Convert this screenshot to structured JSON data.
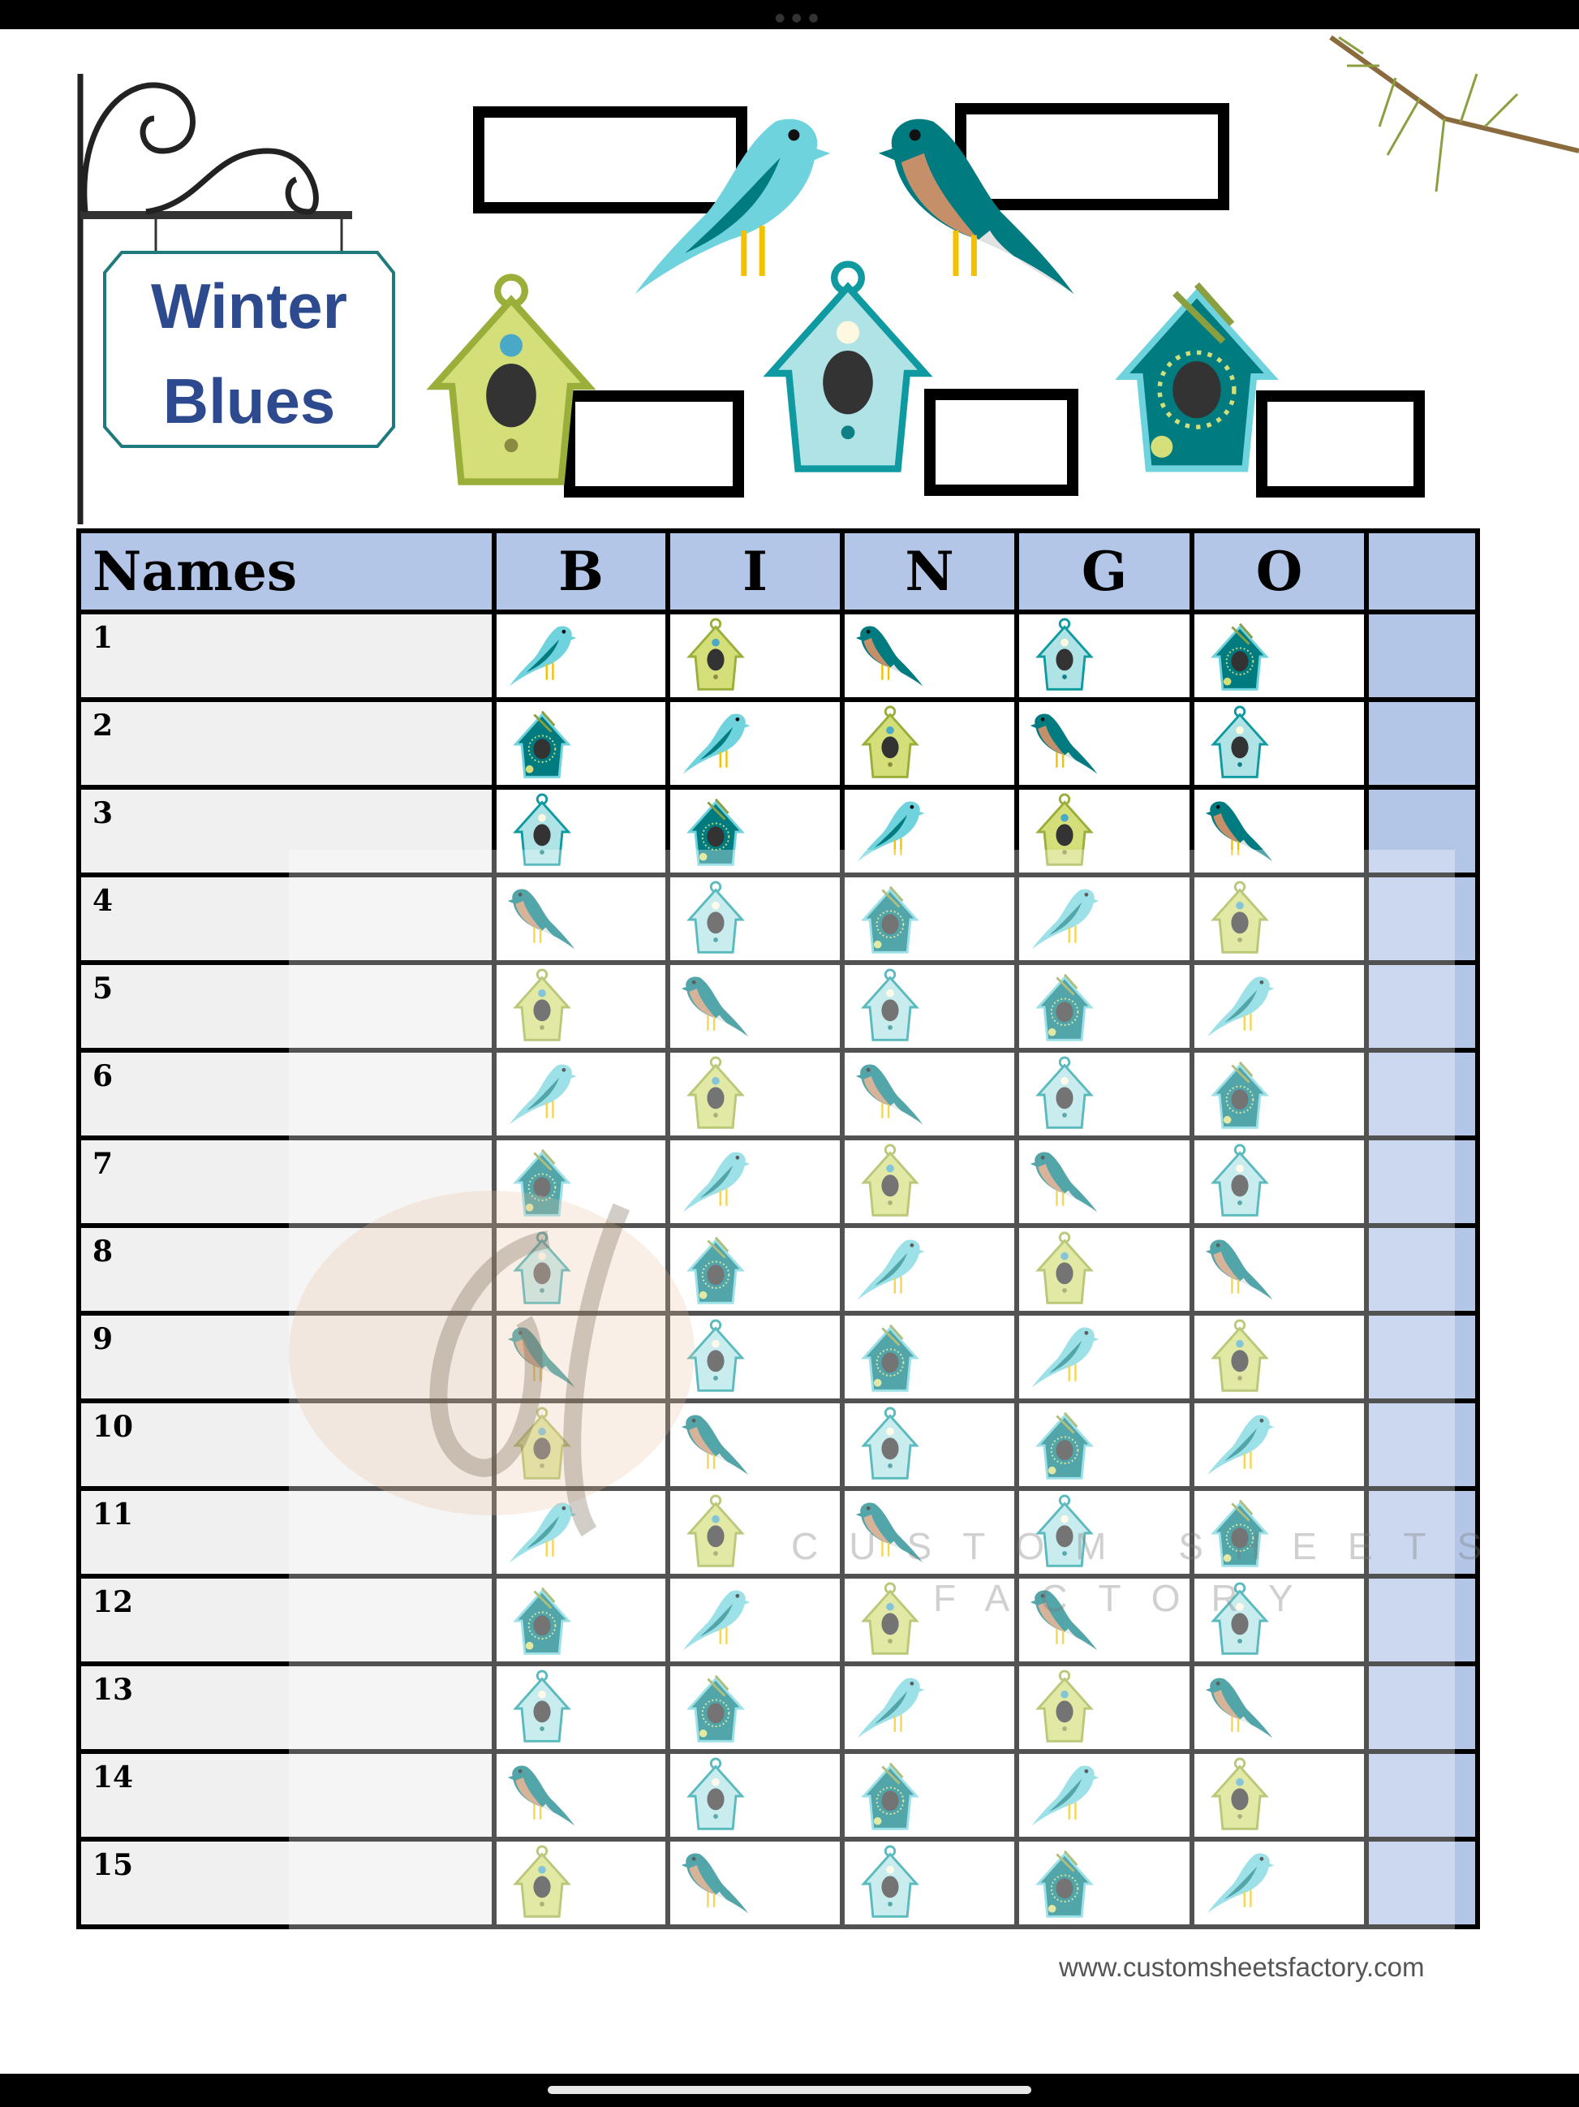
{
  "title": {
    "line1": "Winter",
    "line2": "Blues"
  },
  "table": {
    "header": [
      "Names",
      "B",
      "I",
      "N",
      "G",
      "O",
      ""
    ],
    "rows": [
      {
        "number": "1",
        "icons": [
          "bluebird",
          "green-birdhouse",
          "robin",
          "light-blue-birdhouse",
          "teal-birdhouse"
        ]
      },
      {
        "number": "2",
        "icons": [
          "teal-birdhouse",
          "bluebird",
          "green-birdhouse",
          "robin",
          "light-blue-birdhouse"
        ]
      },
      {
        "number": "3",
        "icons": [
          "light-blue-birdhouse",
          "teal-birdhouse",
          "bluebird",
          "green-birdhouse",
          "robin"
        ]
      },
      {
        "number": "4",
        "icons": [
          "robin",
          "light-blue-birdhouse",
          "teal-birdhouse",
          "bluebird",
          "green-birdhouse"
        ]
      },
      {
        "number": "5",
        "icons": [
          "green-birdhouse",
          "robin",
          "light-blue-birdhouse",
          "teal-birdhouse",
          "bluebird"
        ]
      },
      {
        "number": "6",
        "icons": [
          "bluebird",
          "green-birdhouse",
          "robin",
          "light-blue-birdhouse",
          "teal-birdhouse"
        ]
      },
      {
        "number": "7",
        "icons": [
          "teal-birdhouse",
          "bluebird",
          "green-birdhouse",
          "robin",
          "light-blue-birdhouse"
        ]
      },
      {
        "number": "8",
        "icons": [
          "light-blue-birdhouse",
          "teal-birdhouse",
          "bluebird",
          "green-birdhouse",
          "robin"
        ]
      },
      {
        "number": "9",
        "icons": [
          "robin",
          "light-blue-birdhouse",
          "teal-birdhouse",
          "bluebird",
          "green-birdhouse"
        ]
      },
      {
        "number": "10",
        "icons": [
          "green-birdhouse",
          "robin",
          "light-blue-birdhouse",
          "teal-birdhouse",
          "bluebird"
        ]
      },
      {
        "number": "11",
        "icons": [
          "bluebird",
          "green-birdhouse",
          "robin",
          "light-blue-birdhouse",
          "teal-birdhouse"
        ]
      },
      {
        "number": "12",
        "icons": [
          "teal-birdhouse",
          "bluebird",
          "green-birdhouse",
          "robin",
          "light-blue-birdhouse"
        ]
      },
      {
        "number": "13",
        "icons": [
          "light-blue-birdhouse",
          "teal-birdhouse",
          "bluebird",
          "green-birdhouse",
          "robin"
        ]
      },
      {
        "number": "14",
        "icons": [
          "robin",
          "light-blue-birdhouse",
          "teal-birdhouse",
          "bluebird",
          "green-birdhouse"
        ]
      },
      {
        "number": "15",
        "icons": [
          "green-birdhouse",
          "robin",
          "light-blue-birdhouse",
          "teal-birdhouse",
          "bluebird"
        ]
      }
    ]
  },
  "watermark": {
    "logo": "sf",
    "line1": "CUSTOM SHEETS",
    "line2": "FACTORY"
  },
  "footer": {
    "url": "www.customsheetsfactory.com"
  },
  "colors": {
    "header_bg": "#b4c6e7",
    "names_bg": "#f0f0f0",
    "title": "#2e4a8f",
    "teal": "#007b80",
    "light_blue": "#b0e3e6",
    "green": "#d4df7a"
  }
}
